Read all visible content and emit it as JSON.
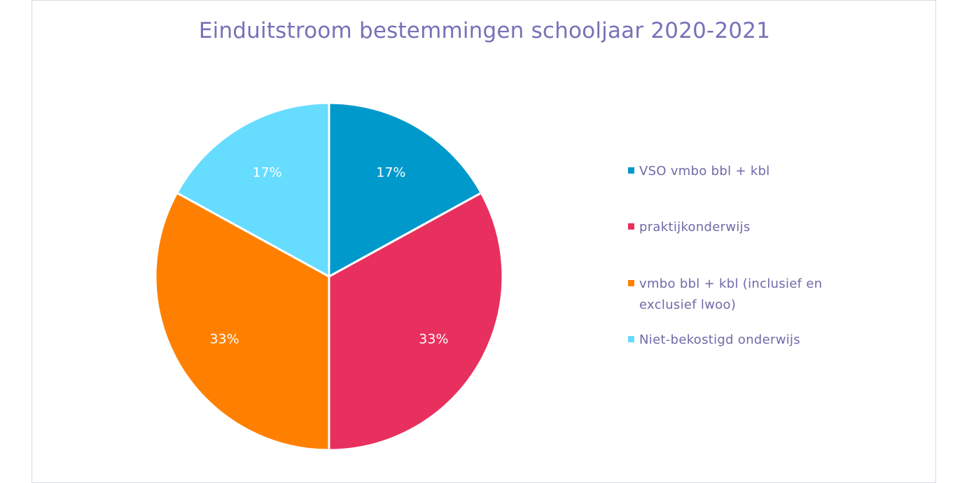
{
  "chart_data": {
    "type": "pie",
    "title": "Einduitstroom bestemmingen schooljaar 2020-2021",
    "categories": [
      "VSO vmbo bbl + kbl",
      "praktijkonderwijs",
      "vmbo bbl + kbl (inclusief en exclusief lwoo)",
      "Niet-bekostigd onderwijs"
    ],
    "values": [
      17,
      33,
      33,
      17
    ],
    "labels": [
      "17%",
      "33%",
      "33%",
      "17%"
    ],
    "colors": [
      "#0099cc",
      "#e8305e",
      "#ff8000",
      "#66dcff"
    ],
    "legend": "right"
  }
}
